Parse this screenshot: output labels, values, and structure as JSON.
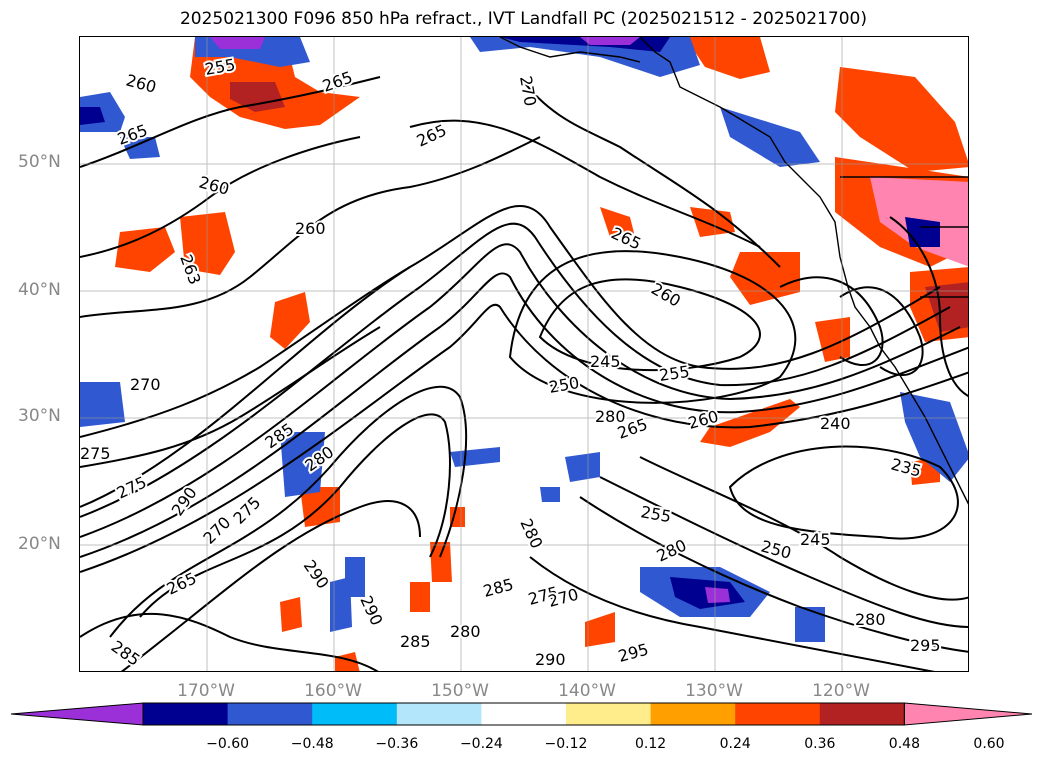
{
  "title": "2025021300 F096 850 hPa refract., IVT Landfall PC (2025021512 - 2025021700)",
  "lat_labels": [
    "50°N",
    "40°N",
    "30°N",
    "20°N"
  ],
  "lon_labels": [
    "170°W",
    "160°W",
    "150°W",
    "140°W",
    "130°W",
    "120°W"
  ],
  "colorbar": {
    "colors": [
      "#9b30d9",
      "#000090",
      "#3058d0",
      "#00bcf8",
      "#b3e5fb",
      "#ffffff",
      "#ffec8a",
      "#ffa000",
      "#ff4400",
      "#b22222",
      "#ff85b0"
    ],
    "tick_labels": [
      "−0.60",
      "−0.48",
      "−0.36",
      "−0.24",
      "−0.12",
      "0.12",
      "0.24",
      "0.36",
      "0.48",
      "0.60"
    ]
  },
  "contour_labels": [
    "260",
    "255",
    "265",
    "265",
    "270",
    "260",
    "260",
    "265",
    "265",
    "263",
    "260",
    "265",
    "260",
    "245",
    "250",
    "255",
    "270",
    "280",
    "265",
    "260",
    "240",
    "235",
    "275",
    "275",
    "285",
    "280",
    "290",
    "290",
    "275",
    "270",
    "265",
    "285",
    "290",
    "280",
    "275",
    "255",
    "250",
    "245",
    "280",
    "270",
    "285",
    "290",
    "295",
    "285",
    "280",
    "295",
    "280"
  ]
}
